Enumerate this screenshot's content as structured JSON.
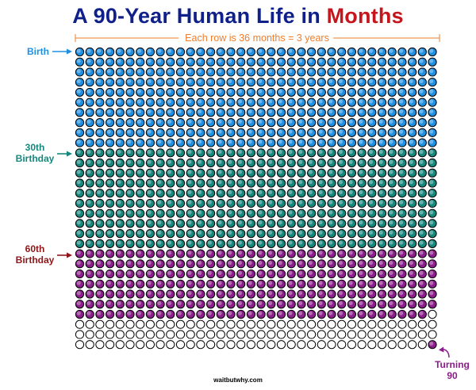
{
  "title": {
    "prefix": "A 90-Year Human Life in ",
    "highlight": "Months"
  },
  "row_note": "Each row is 36 months = 3 years",
  "labels": {
    "birth": "Birth",
    "thirtieth_line1": "30th",
    "thirtieth_line2": "Birthday",
    "sixtieth_line1": "60th",
    "sixtieth_line2": "Birthday",
    "turning_line1": "Turning",
    "turning_line2": "90"
  },
  "footer": "waitbutwhy.com",
  "grid": {
    "columns": 36,
    "rows": 30,
    "months_per_row": 36,
    "segments": [
      {
        "name": "first-thirty-years",
        "months": 360,
        "color": "#1e8fe1"
      },
      {
        "name": "thirty-to-sixty-years",
        "months": 360,
        "color": "#16877d"
      },
      {
        "name": "sixty-years-onward",
        "months": 251,
        "color": "#8b1e8a"
      }
    ],
    "final_month_filled": true,
    "empty_color": "#ffffff"
  },
  "colors": {
    "title": "#10208a",
    "highlight": "#c4161c",
    "row_note": "#ef7d2a",
    "birth": "#1e8fe1",
    "thirtieth": "#16877d",
    "sixtieth": "#8e1618",
    "turning": "#8b1e8a"
  }
}
